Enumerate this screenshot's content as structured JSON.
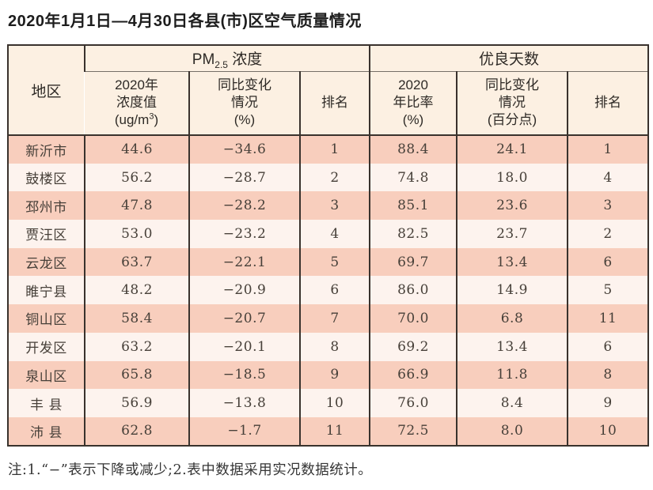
{
  "page": {
    "title": "2020年1月1日—4月30日各县(市)区空气质量情况",
    "footnote": "注:1.“−”表示下降或减少;2.表中数据采用实况数据统计。"
  },
  "colors": {
    "row_salmon": "#f8cebd",
    "row_light": "#fdf3ee",
    "header_bg": "#fcf0e2",
    "border_dark": "#39322d",
    "title_text": "#1d1d1d",
    "cell_text": "#474039"
  },
  "table": {
    "header": {
      "region": "地区",
      "pm25_group": {
        "pre": "PM",
        "sub": "2.5",
        "post": " 浓度"
      },
      "good_days_group": "优良天数",
      "col_pm_value": {
        "line1": "2020年",
        "line2": "浓度值",
        "line3_pre": "(ug/m",
        "line3_sup": "3",
        "line3_post": ")"
      },
      "col_pm_change": {
        "line1": "同比变化",
        "line2": "情况",
        "line3": "(%)"
      },
      "col_pm_rank": "排名",
      "col_gd_ratio": {
        "line1": "2020",
        "line2": "年比率",
        "line3": "(%)"
      },
      "col_gd_change": {
        "line1": "同比变化",
        "line2": "情况",
        "line3": "(百分点)"
      },
      "col_gd_rank": "排名"
    },
    "rows": [
      [
        "新沂市",
        "44.6",
        "−34.6",
        "1",
        "88.4",
        "24.1",
        "1"
      ],
      [
        "鼓楼区",
        "56.2",
        "−28.7",
        "2",
        "74.8",
        "18.0",
        "4"
      ],
      [
        "邳州市",
        "47.8",
        "−28.2",
        "3",
        "85.1",
        "23.6",
        "3"
      ],
      [
        "贾汪区",
        "53.0",
        "−23.2",
        "4",
        "82.5",
        "23.7",
        "2"
      ],
      [
        "云龙区",
        "63.7",
        "−22.1",
        "5",
        "69.7",
        "13.4",
        "6"
      ],
      [
        "睢宁县",
        "48.2",
        "−20.9",
        "6",
        "86.0",
        "14.9",
        "5"
      ],
      [
        "铜山区",
        "58.4",
        "−20.7",
        "7",
        "70.0",
        "6.8",
        "11"
      ],
      [
        "开发区",
        "63.2",
        "−20.1",
        "8",
        "69.2",
        "13.4",
        "6"
      ],
      [
        "泉山区",
        "65.8",
        "−18.5",
        "9",
        "66.9",
        "11.8",
        "8"
      ],
      [
        "丰 县",
        "56.9",
        "−13.8",
        "10",
        "76.0",
        "8.4",
        "9"
      ],
      [
        "沛 县",
        "62.8",
        "−1.7",
        "11",
        "72.5",
        "8.0",
        "10"
      ]
    ]
  }
}
